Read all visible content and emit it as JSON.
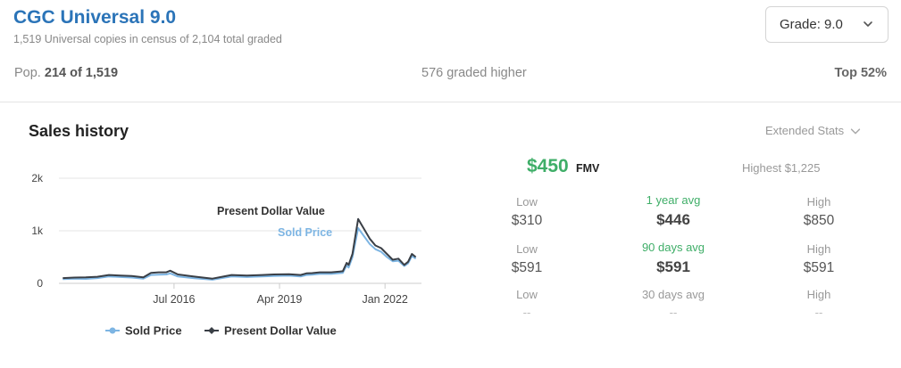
{
  "header": {
    "title": "CGC Universal 9.0",
    "subtitle": "1,519 Universal copies in census of 2,104 total graded",
    "grade_label": "Grade: 9.0"
  },
  "stats": {
    "pop_prefix": "Pop.",
    "pop_value": "214 of 1,519",
    "graded_higher": "576 graded higher",
    "top": "Top 52%"
  },
  "sales": {
    "title": "Sales history",
    "extended_stats": "Extended Stats",
    "fmv_value": "$450",
    "fmv_label": "FMV",
    "highest": "Highest $1,225",
    "rows": [
      {
        "low_label": "Low",
        "low": "$310",
        "avg_label": "1 year avg",
        "avg": "$446",
        "high_label": "High",
        "high": "$850"
      },
      {
        "low_label": "Low",
        "low": "$591",
        "avg_label": "90 days avg",
        "avg": "$591",
        "high_label": "High",
        "high": "$591"
      },
      {
        "low_label": "Low",
        "low": "--",
        "avg_label": "30 days avg",
        "avg": "--",
        "high_label": "High",
        "high": "--"
      }
    ]
  },
  "colors": {
    "sold": "#7db5e3",
    "present": "#3a3f46",
    "accent_blue": "#2b74b8",
    "green": "#3fae68"
  },
  "chart_data": {
    "type": "line",
    "y_ticks": [
      "0",
      "1k",
      "2k"
    ],
    "ylim": [
      0,
      2000
    ],
    "x_ticks": [
      {
        "label": "Jul 2016",
        "t": 2016.5
      },
      {
        "label": "Apr 2019",
        "t": 2019.25
      },
      {
        "label": "Jan 2022",
        "t": 2022.0
      }
    ],
    "xlim": [
      2013.5,
      2022.95
    ],
    "annotations": {
      "present": "Present Dollar Value",
      "sold": "Sold Price"
    },
    "series": [
      {
        "name": "Sold Price",
        "key": "sold",
        "x": [
          2013.6,
          2013.9,
          2014.2,
          2014.5,
          2014.8,
          2015.1,
          2015.4,
          2015.7,
          2015.9,
          2016.1,
          2016.3,
          2016.4,
          2016.6,
          2017.0,
          2017.5,
          2018.0,
          2018.4,
          2018.8,
          2019.1,
          2019.5,
          2019.8,
          2019.95,
          2020.1,
          2020.3,
          2020.6,
          2020.9,
          2021.0,
          2021.05,
          2021.15,
          2021.3,
          2021.4,
          2021.6,
          2021.75,
          2021.9,
          2022.05,
          2022.2,
          2022.35,
          2022.5,
          2022.6,
          2022.7,
          2022.8
        ],
        "y": [
          80,
          90,
          85,
          100,
          130,
          120,
          110,
          90,
          160,
          165,
          170,
          190,
          130,
          100,
          70,
          130,
          120,
          130,
          140,
          145,
          130,
          160,
          165,
          180,
          180,
          200,
          340,
          300,
          500,
          1050,
          950,
          750,
          650,
          600,
          500,
          420,
          430,
          330,
          380,
          520,
          470
        ]
      },
      {
        "name": "Present Dollar Value",
        "key": "present",
        "x": [
          2013.6,
          2013.9,
          2014.2,
          2014.5,
          2014.8,
          2015.1,
          2015.4,
          2015.7,
          2015.9,
          2016.1,
          2016.3,
          2016.4,
          2016.6,
          2017.0,
          2017.5,
          2018.0,
          2018.4,
          2018.8,
          2019.1,
          2019.5,
          2019.8,
          2019.95,
          2020.1,
          2020.3,
          2020.6,
          2020.9,
          2021.0,
          2021.05,
          2021.15,
          2021.3,
          2021.4,
          2021.6,
          2021.75,
          2021.9,
          2022.05,
          2022.2,
          2022.35,
          2022.5,
          2022.6,
          2022.7,
          2022.8
        ],
        "y": [
          100,
          110,
          115,
          125,
          160,
          150,
          140,
          115,
          200,
          210,
          210,
          240,
          170,
          130,
          90,
          160,
          150,
          160,
          170,
          175,
          160,
          190,
          195,
          210,
          210,
          230,
          390,
          350,
          560,
          1225,
          1100,
          850,
          720,
          670,
          560,
          450,
          470,
          350,
          410,
          560,
          500
        ]
      }
    ],
    "legend": {
      "items": [
        "Sold Price",
        "Present Dollar Value"
      ],
      "position": "bottom"
    },
    "grid": true
  }
}
